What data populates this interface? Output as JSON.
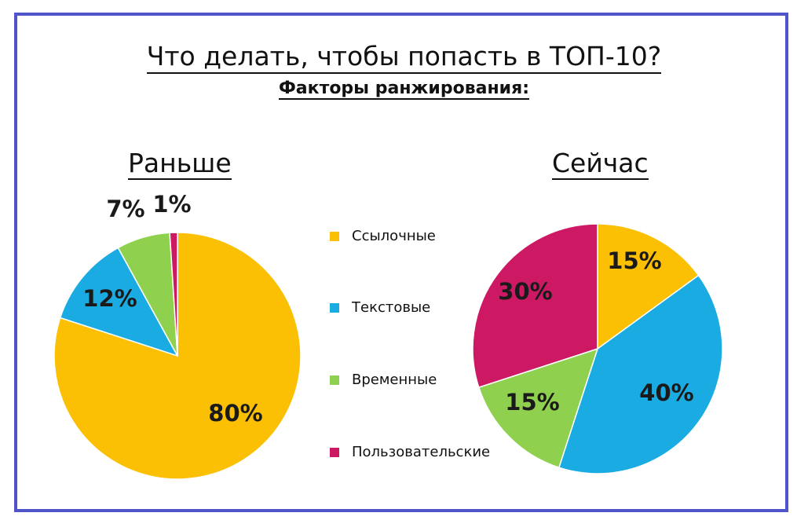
{
  "title": "Что делать, чтобы попасть в ТОП-10?",
  "subtitle": "Факторы ранжирования:",
  "colors": {
    "border": "#4f54c8",
    "links": "#fbbf04",
    "text": "#1aabe2",
    "time": "#8fd14f",
    "user": "#cd1963"
  },
  "chart_data": [
    {
      "type": "pie",
      "title": "Раньше",
      "slices": [
        {
          "label": "Ссылочные",
          "value": 80,
          "text": "80%"
        },
        {
          "label": "Текстовые",
          "value": 12,
          "text": "12%"
        },
        {
          "label": "Временные",
          "value": 7,
          "text": "7%"
        },
        {
          "label": "Пользовательские",
          "value": 1,
          "text": "1%"
        }
      ]
    },
    {
      "type": "pie",
      "title": "Сейчас",
      "slices": [
        {
          "label": "Ссылочные",
          "value": 15,
          "text": "15%"
        },
        {
          "label": "Текстовые",
          "value": 40,
          "text": "40%"
        },
        {
          "label": "Временные",
          "value": 15,
          "text": "15%"
        },
        {
          "label": "Пользовательские",
          "value": 30,
          "text": "30%"
        }
      ]
    }
  ],
  "legend": [
    "Ссылочные",
    "Текстовые",
    "Временные",
    "Пользовательские"
  ]
}
